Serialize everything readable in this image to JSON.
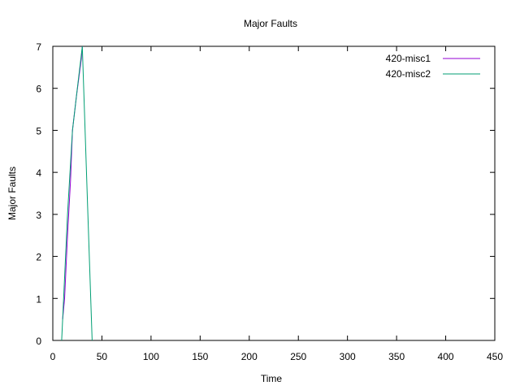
{
  "chart_data": {
    "type": "line",
    "title": "Major Faults",
    "xlabel": "Time",
    "ylabel": "Major Faults",
    "xlim": [
      0,
      450
    ],
    "ylim": [
      0,
      7
    ],
    "x_ticks": [
      0,
      50,
      100,
      150,
      200,
      250,
      300,
      350,
      400,
      450
    ],
    "y_ticks": [
      0,
      1,
      2,
      3,
      4,
      5,
      6,
      7
    ],
    "x_tick_labels": [
      "0",
      "50",
      "100",
      "150",
      "200",
      "250",
      "300",
      "350",
      "400",
      "450"
    ],
    "y_tick_labels": [
      "0",
      "1",
      "2",
      "3",
      "4",
      "5",
      "6",
      "7"
    ],
    "grid": false,
    "legend_position": "top-right",
    "series": [
      {
        "name": "420-misc1",
        "color": "#9400d3",
        "x": [
          10,
          12,
          15,
          18,
          20,
          24,
          29,
          30
        ],
        "y": [
          0.5,
          1.0,
          2.5,
          3.8,
          5.0,
          5.8,
          6.7,
          7.0
        ]
      },
      {
        "name": "420-misc2",
        "color": "#009e73",
        "x": [
          9,
          11,
          15,
          20,
          25,
          30,
          35,
          40
        ],
        "y": [
          0,
          1.0,
          3.0,
          5.0,
          6.0,
          7.0,
          3.5,
          0
        ]
      }
    ]
  }
}
